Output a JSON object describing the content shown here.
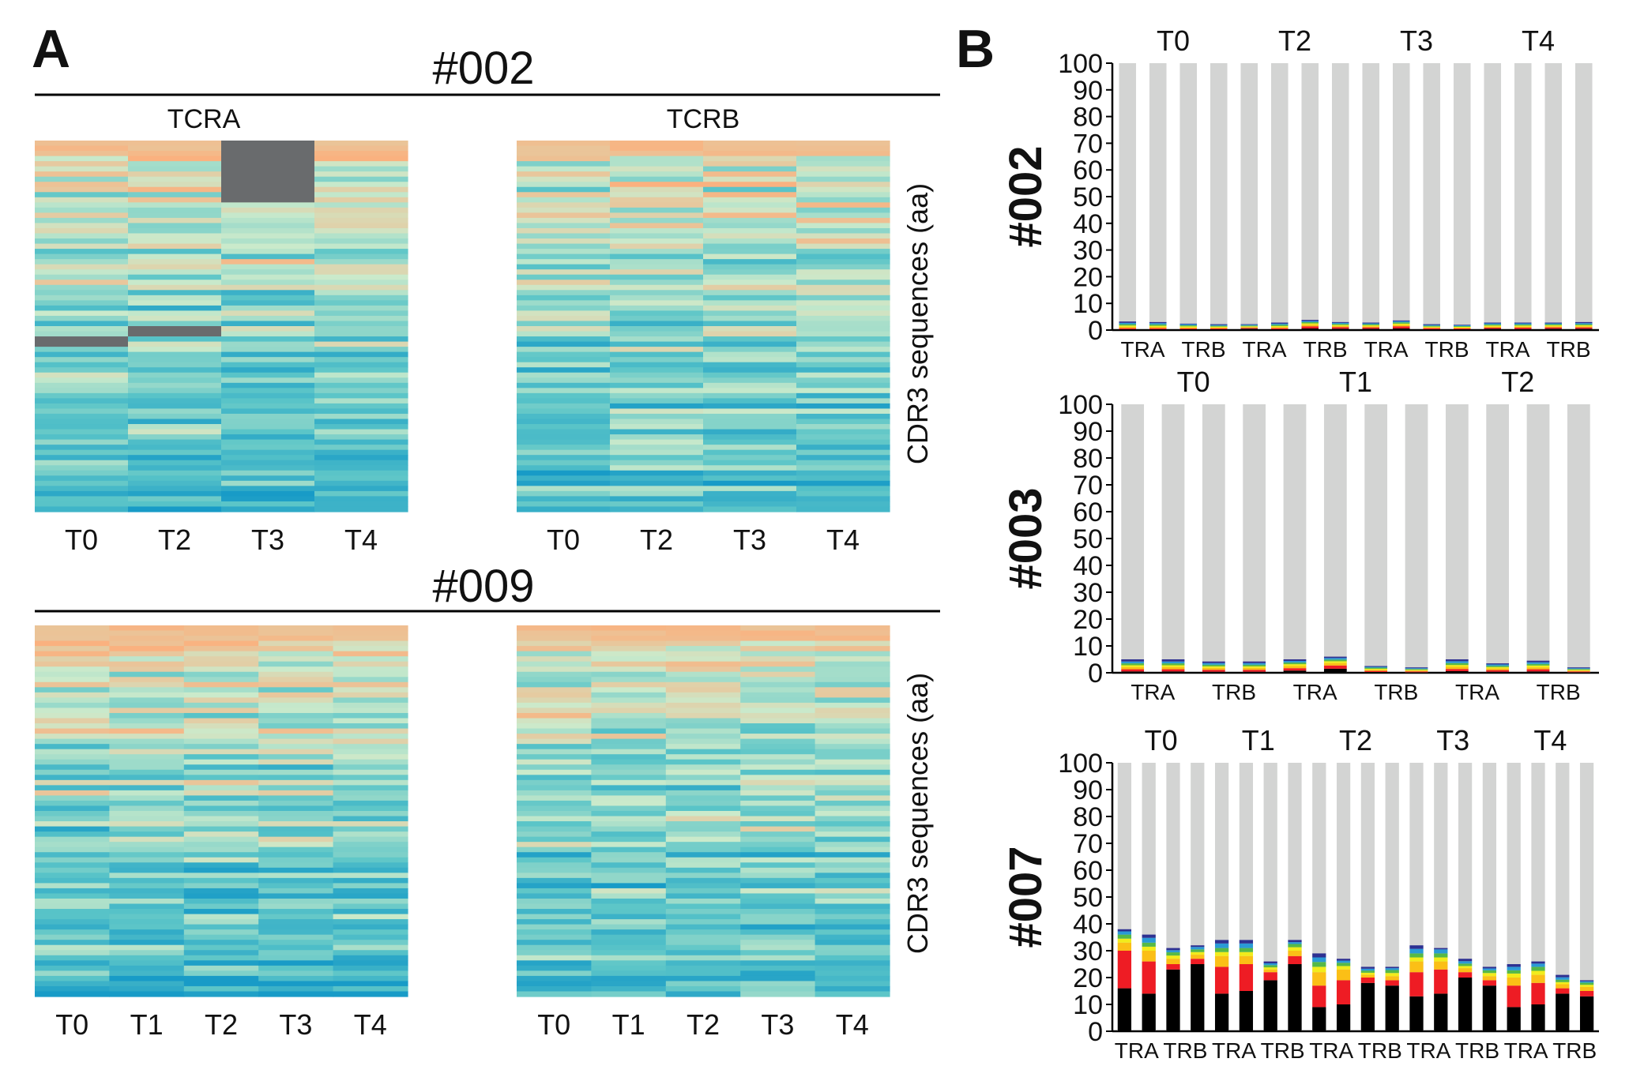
{
  "panel_a": {
    "label": "A",
    "ylabel": "CDR3 sequences (aa)",
    "palette": [
      "#ffffff",
      "#fab17f",
      "#cbeacb",
      "#5bc5c8",
      "#189bc7"
    ],
    "patients": [
      {
        "title": "#002",
        "heatmaps": [
          {
            "title": "TCRA",
            "columns": [
              "T0",
              "T2",
              "T3",
              "T4"
            ],
            "rows": 72,
            "seed": 11,
            "gray_blocks": [
              {
                "col": 2,
                "row_start": 0,
                "row_end": 12
              },
              {
                "col": 0,
                "row_start": 38,
                "row_end": 40
              },
              {
                "col": 1,
                "row_start": 36,
                "row_end": 38
              }
            ]
          },
          {
            "title": "TCRB",
            "columns": [
              "T0",
              "T2",
              "T3",
              "T4"
            ],
            "rows": 72,
            "seed": 23,
            "gray_blocks": []
          }
        ]
      },
      {
        "title": "#009",
        "heatmaps": [
          {
            "title": "",
            "columns": [
              "T0",
              "T1",
              "T2",
              "T3",
              "T4"
            ],
            "rows": 72,
            "seed": 37,
            "gray_blocks": []
          },
          {
            "title": "",
            "columns": [
              "T0",
              "T1",
              "T2",
              "T3",
              "T4"
            ],
            "rows": 72,
            "seed": 51,
            "gray_blocks": []
          }
        ]
      }
    ]
  },
  "panel_b": {
    "label": "B",
    "segment_colors": [
      "#000000",
      "#ee1c24",
      "#fbbf16",
      "#f2ec1b",
      "#56b947",
      "#2a9ad6",
      "#2e3192"
    ],
    "rest_color": "#d3d4d3"
  },
  "chart_data": [
    {
      "type": "bar",
      "title": "#002",
      "stacked": true,
      "ylim": [
        0,
        100
      ],
      "yticks": [
        0,
        10,
        20,
        30,
        40,
        50,
        60,
        70,
        80,
        90,
        100
      ],
      "timepoints": [
        "T0",
        "T2",
        "T3",
        "T4"
      ],
      "categories": [
        "TRA",
        "TRB",
        "TRA",
        "TRB",
        "TRA",
        "TRB",
        "TRA",
        "TRB"
      ],
      "bar_tops": [
        3.2,
        3.0,
        2.4,
        2.2,
        2.2,
        2.8,
        3.8,
        3.0,
        2.8,
        3.6,
        2.2,
        2.0,
        2.8,
        2.8,
        2.8,
        3.0
      ],
      "segments": [
        [
          0.3,
          0.3,
          0.3,
          0.3,
          0.5,
          0.3,
          0.6,
          0.5,
          0.5,
          0.6,
          0.3,
          0.3,
          0.5,
          0.4,
          0.5,
          0.5
        ],
        [
          0.4,
          0.4,
          0.3,
          0.3,
          0.3,
          0.4,
          0.8,
          0.6,
          0.5,
          0.8,
          0.4,
          0.3,
          0.4,
          0.5,
          0.5,
          0.5
        ],
        [
          0.5,
          0.5,
          0.4,
          0.4,
          0.3,
          0.4,
          0.6,
          0.4,
          0.4,
          0.5,
          0.3,
          0.3,
          0.4,
          0.4,
          0.4,
          0.4
        ],
        [
          0.5,
          0.4,
          0.4,
          0.3,
          0.3,
          0.4,
          0.5,
          0.4,
          0.4,
          0.5,
          0.3,
          0.3,
          0.4,
          0.4,
          0.4,
          0.4
        ],
        [
          0.5,
          0.5,
          0.4,
          0.3,
          0.3,
          0.5,
          0.5,
          0.4,
          0.4,
          0.5,
          0.3,
          0.3,
          0.4,
          0.4,
          0.4,
          0.4
        ],
        [
          0.5,
          0.5,
          0.4,
          0.3,
          0.3,
          0.4,
          0.4,
          0.4,
          0.3,
          0.4,
          0.3,
          0.3,
          0.4,
          0.4,
          0.3,
          0.4
        ],
        [
          0.5,
          0.4,
          0.2,
          0.3,
          0.2,
          0.4,
          0.4,
          0.3,
          0.3,
          0.3,
          0.3,
          0.2,
          0.3,
          0.3,
          0.3,
          0.4
        ]
      ]
    },
    {
      "type": "bar",
      "title": "#003",
      "stacked": true,
      "ylim": [
        0,
        100
      ],
      "yticks": [
        0,
        10,
        20,
        30,
        40,
        50,
        60,
        70,
        80,
        90,
        100
      ],
      "timepoints": [
        "T0",
        "T1",
        "T2"
      ],
      "categories": [
        "TRA",
        "TRB",
        "TRA",
        "TRB",
        "TRA",
        "TRB"
      ],
      "bar_tops": [
        5.0,
        5.0,
        4.2,
        4.2,
        5.0,
        6.0,
        2.5,
        2.0,
        5.0,
        3.5,
        4.5,
        2.0
      ],
      "segments": [
        [
          0.5,
          0.5,
          0.4,
          0.4,
          0.8,
          1.5,
          0.3,
          0.2,
          0.6,
          0.4,
          0.5,
          0.2
        ],
        [
          0.8,
          0.8,
          0.7,
          0.7,
          0.9,
          1.2,
          0.4,
          0.3,
          0.8,
          0.6,
          0.8,
          0.3
        ],
        [
          0.8,
          0.8,
          0.7,
          0.7,
          0.8,
          0.9,
          0.4,
          0.3,
          0.8,
          0.6,
          0.7,
          0.3
        ],
        [
          0.7,
          0.7,
          0.6,
          0.6,
          0.7,
          0.7,
          0.4,
          0.3,
          0.7,
          0.5,
          0.7,
          0.3
        ],
        [
          0.7,
          0.7,
          0.6,
          0.6,
          0.6,
          0.6,
          0.4,
          0.3,
          0.7,
          0.5,
          0.6,
          0.3
        ],
        [
          0.7,
          0.7,
          0.6,
          0.6,
          0.6,
          0.6,
          0.3,
          0.3,
          0.7,
          0.5,
          0.6,
          0.3
        ],
        [
          0.8,
          0.8,
          0.6,
          0.6,
          0.6,
          0.5,
          0.3,
          0.3,
          0.7,
          0.4,
          0.6,
          0.3
        ]
      ]
    },
    {
      "type": "bar",
      "title": "#007",
      "stacked": true,
      "ylim": [
        0,
        100
      ],
      "yticks": [
        0,
        10,
        20,
        30,
        40,
        50,
        60,
        70,
        80,
        90,
        100
      ],
      "timepoints": [
        "T0",
        "T1",
        "T2",
        "T3",
        "T4"
      ],
      "categories": [
        "TRA",
        "TRB",
        "TRA",
        "TRB",
        "TRA",
        "TRB",
        "TRA",
        "TRB",
        "TRA",
        "TRB"
      ],
      "bar_tops": [
        38,
        36,
        31,
        32,
        34,
        34,
        26,
        34,
        29,
        27,
        24,
        25,
        32,
        31,
        27,
        24,
        25,
        26,
        21,
        19
      ],
      "segments": [
        [
          16,
          14,
          23,
          25,
          14,
          15,
          19,
          25,
          9,
          10,
          18,
          17,
          13,
          14,
          20,
          17,
          9,
          10,
          14,
          13
        ],
        [
          14,
          12,
          2,
          2,
          10,
          10,
          3,
          3,
          8,
          9,
          2,
          2,
          9,
          9,
          2,
          2,
          8,
          8,
          2,
          2
        ],
        [
          3,
          4,
          2,
          1.5,
          4,
          3,
          1,
          2,
          5,
          4,
          1,
          1.5,
          4,
          3,
          1.5,
          1.5,
          3,
          3,
          1.5,
          1.5
        ],
        [
          1.5,
          1.5,
          1.2,
          1,
          1.5,
          1.5,
          0.8,
          1.3,
          2,
          1.3,
          0.8,
          1.2,
          1.5,
          1.5,
          0.8,
          1.2,
          1.5,
          1.5,
          0.8,
          0.8
        ],
        [
          1.5,
          1.5,
          1.2,
          1,
          1.5,
          1.5,
          0.8,
          1.2,
          1.8,
          1.2,
          0.8,
          1.1,
          1.5,
          1.5,
          0.9,
          1,
          1.2,
          1.5,
          0.9,
          0.8
        ],
        [
          1.2,
          1.8,
          0.8,
          0.9,
          1.7,
          1.7,
          0.7,
          0.7,
          1.7,
          0.8,
          0.7,
          0.7,
          1.7,
          1.5,
          0.9,
          0.7,
          1.3,
          1.2,
          0.9,
          0.5
        ],
        [
          0.8,
          1.2,
          0.8,
          0.6,
          1.3,
          1.3,
          0.7,
          0.8,
          1.5,
          0.7,
          0.7,
          0.5,
          1.3,
          0.5,
          0.9,
          0.6,
          1,
          0.8,
          0.9,
          0.4
        ]
      ]
    }
  ]
}
